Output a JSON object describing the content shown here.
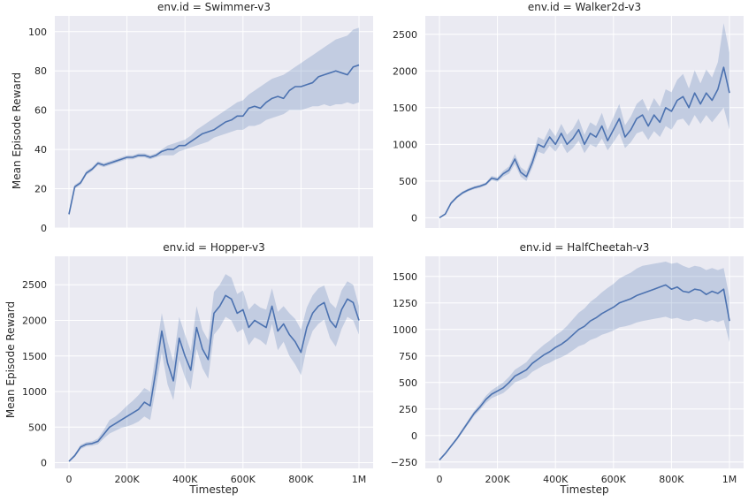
{
  "figure": {
    "xlabel": "Timestep",
    "ylabel": "Mean Episode Reward",
    "colors": {
      "background": "#eaeaf2",
      "grid": "#ffffff",
      "line": "#4c72b0",
      "band": "#4c72b0"
    }
  },
  "chart_data": [
    {
      "type": "line",
      "title": "env.id = Swimmer-v3",
      "xlim": [
        0,
        1000000
      ],
      "ylim": [
        0,
        108
      ],
      "xticks": [
        0,
        200000,
        400000,
        600000,
        800000,
        1000000
      ],
      "xtick_labels": [
        "0",
        "200K",
        "400K",
        "600K",
        "800K",
        "1M"
      ],
      "yticks": [
        0,
        20,
        40,
        60,
        80,
        100
      ],
      "ytick_labels": [
        "0",
        "20",
        "40",
        "60",
        "80",
        "100"
      ],
      "show_xticklabels": false,
      "show_ylabel": true,
      "show_xlabel": false,
      "x": [
        0,
        20000,
        40000,
        60000,
        80000,
        100000,
        120000,
        140000,
        160000,
        180000,
        200000,
        220000,
        240000,
        260000,
        280000,
        300000,
        320000,
        340000,
        360000,
        380000,
        400000,
        420000,
        440000,
        460000,
        480000,
        500000,
        520000,
        540000,
        560000,
        580000,
        600000,
        620000,
        640000,
        660000,
        680000,
        700000,
        720000,
        740000,
        760000,
        780000,
        800000,
        820000,
        840000,
        860000,
        880000,
        900000,
        920000,
        940000,
        960000,
        980000,
        1000000
      ],
      "y": [
        7,
        21,
        23,
        28,
        30,
        33,
        32,
        33,
        34,
        35,
        36,
        36,
        37,
        37,
        36,
        37,
        39,
        40,
        40,
        42,
        42,
        44,
        46,
        48,
        49,
        50,
        52,
        54,
        55,
        57,
        57,
        61,
        62,
        61,
        64,
        66,
        67,
        66,
        70,
        72,
        72,
        73,
        74,
        77,
        78,
        79,
        80,
        79,
        78,
        82,
        83
      ],
      "lower": [
        6,
        20,
        22,
        27,
        29,
        32,
        31,
        32,
        33,
        34,
        35,
        35,
        36,
        36,
        35,
        36,
        37,
        37,
        37,
        39,
        40,
        41,
        42,
        43,
        44,
        46,
        47,
        48,
        49,
        50,
        50,
        52,
        52,
        53,
        55,
        56,
        57,
        58,
        60,
        60,
        60,
        61,
        62,
        62,
        63,
        62,
        63,
        63,
        64,
        63,
        64
      ],
      "upper": [
        8,
        22,
        24,
        29,
        31,
        34,
        33,
        34,
        35,
        36,
        37,
        37,
        38,
        38,
        37,
        38,
        40,
        42,
        43,
        44,
        45,
        47,
        50,
        52,
        54,
        56,
        58,
        60,
        62,
        64,
        65,
        68,
        70,
        72,
        74,
        76,
        77,
        78,
        80,
        82,
        84,
        86,
        88,
        90,
        92,
        94,
        96,
        97,
        98,
        101,
        102
      ]
    },
    {
      "type": "line",
      "title": "env.id = Walker2d-v3",
      "xlim": [
        0,
        1000000
      ],
      "ylim": [
        -140,
        2750
      ],
      "xticks": [
        0,
        200000,
        400000,
        600000,
        800000,
        1000000
      ],
      "xtick_labels": [
        "0",
        "200K",
        "400K",
        "600K",
        "800K",
        "1M"
      ],
      "yticks": [
        0,
        500,
        1000,
        1500,
        2000,
        2500
      ],
      "ytick_labels": [
        "0",
        "500",
        "1000",
        "1500",
        "2000",
        "2500"
      ],
      "show_xticklabels": false,
      "show_ylabel": false,
      "show_xlabel": false,
      "x": [
        0,
        20000,
        40000,
        60000,
        80000,
        100000,
        120000,
        140000,
        160000,
        180000,
        200000,
        220000,
        240000,
        260000,
        280000,
        300000,
        320000,
        340000,
        360000,
        380000,
        400000,
        420000,
        440000,
        460000,
        480000,
        500000,
        520000,
        540000,
        560000,
        580000,
        600000,
        620000,
        640000,
        660000,
        680000,
        700000,
        720000,
        740000,
        760000,
        780000,
        800000,
        820000,
        840000,
        860000,
        880000,
        900000,
        920000,
        940000,
        960000,
        980000,
        1000000
      ],
      "y": [
        0,
        50,
        200,
        280,
        340,
        380,
        410,
        430,
        460,
        540,
        520,
        600,
        650,
        800,
        620,
        560,
        750,
        1000,
        960,
        1100,
        1000,
        1150,
        1000,
        1080,
        1200,
        1000,
        1150,
        1100,
        1250,
        1050,
        1200,
        1350,
        1100,
        1200,
        1350,
        1400,
        1250,
        1400,
        1300,
        1500,
        1450,
        1600,
        1650,
        1500,
        1700,
        1550,
        1700,
        1600,
        1750,
        2050,
        1700
      ],
      "lower": [
        0,
        40,
        180,
        260,
        320,
        360,
        390,
        410,
        440,
        510,
        490,
        560,
        600,
        730,
        560,
        500,
        680,
        900,
        870,
        980,
        900,
        1020,
        880,
        950,
        1050,
        880,
        1000,
        960,
        1080,
        920,
        1030,
        1150,
        950,
        1030,
        1150,
        1180,
        1060,
        1180,
        1100,
        1250,
        1200,
        1330,
        1350,
        1250,
        1400,
        1280,
        1400,
        1300,
        1400,
        1500,
        1200
      ],
      "upper": [
        5,
        60,
        220,
        300,
        360,
        400,
        430,
        450,
        480,
        570,
        550,
        640,
        700,
        870,
        690,
        630,
        830,
        1100,
        1060,
        1220,
        1110,
        1280,
        1130,
        1210,
        1350,
        1130,
        1300,
        1250,
        1430,
        1190,
        1370,
        1550,
        1260,
        1380,
        1550,
        1620,
        1450,
        1630,
        1510,
        1750,
        1710,
        1880,
        1960,
        1760,
        2010,
        1830,
        2020,
        1910,
        2120,
        2650,
        2250
      ]
    },
    {
      "type": "line",
      "title": "env.id = Hopper-v3",
      "xlim": [
        0,
        1000000
      ],
      "ylim": [
        -80,
        2900
      ],
      "xticks": [
        0,
        200000,
        400000,
        600000,
        800000,
        1000000
      ],
      "xtick_labels": [
        "0",
        "200K",
        "400K",
        "600K",
        "800K",
        "1M"
      ],
      "yticks": [
        0,
        500,
        1000,
        1500,
        2000,
        2500
      ],
      "ytick_labels": [
        "0",
        "500",
        "1000",
        "1500",
        "2000",
        "2500"
      ],
      "show_xticklabels": true,
      "show_ylabel": true,
      "show_xlabel": true,
      "x": [
        0,
        20000,
        40000,
        60000,
        80000,
        100000,
        120000,
        140000,
        160000,
        180000,
        200000,
        220000,
        240000,
        260000,
        280000,
        300000,
        320000,
        340000,
        360000,
        380000,
        400000,
        420000,
        440000,
        460000,
        480000,
        500000,
        520000,
        540000,
        560000,
        580000,
        600000,
        620000,
        640000,
        660000,
        680000,
        700000,
        720000,
        740000,
        760000,
        780000,
        800000,
        820000,
        840000,
        860000,
        880000,
        900000,
        920000,
        940000,
        960000,
        980000,
        1000000
      ],
      "y": [
        20,
        100,
        220,
        260,
        270,
        300,
        400,
        500,
        550,
        600,
        650,
        700,
        750,
        850,
        800,
        1300,
        1850,
        1400,
        1150,
        1750,
        1500,
        1300,
        1900,
        1600,
        1450,
        2100,
        2200,
        2350,
        2300,
        2100,
        2150,
        1900,
        2000,
        1950,
        1900,
        2200,
        1850,
        1950,
        1800,
        1700,
        1550,
        1900,
        2100,
        2200,
        2250,
        2000,
        1900,
        2150,
        2300,
        2250,
        2000
      ],
      "lower": [
        10,
        80,
        190,
        230,
        240,
        260,
        340,
        410,
        450,
        490,
        510,
        540,
        580,
        650,
        600,
        1050,
        1550,
        1100,
        880,
        1450,
        1200,
        1030,
        1600,
        1330,
        1180,
        1800,
        1900,
        2050,
        2000,
        1830,
        1880,
        1650,
        1760,
        1720,
        1650,
        1950,
        1580,
        1700,
        1500,
        1380,
        1230,
        1620,
        1850,
        1950,
        2010,
        1750,
        1630,
        1880,
        2050,
        2000,
        1800
      ],
      "upper": [
        30,
        120,
        250,
        290,
        300,
        340,
        460,
        600,
        650,
        720,
        800,
        870,
        950,
        1050,
        1000,
        1560,
        2100,
        1700,
        1420,
        2050,
        1800,
        1570,
        2200,
        1870,
        1720,
        2400,
        2500,
        2650,
        2600,
        2370,
        2420,
        2150,
        2240,
        2180,
        2150,
        2450,
        2120,
        2200,
        2100,
        2020,
        1870,
        2180,
        2350,
        2450,
        2490,
        2250,
        2170,
        2420,
        2550,
        2500,
        2200
      ]
    },
    {
      "type": "line",
      "title": "env.id = HalfCheetah-v3",
      "xlim": [
        0,
        1000000
      ],
      "ylim": [
        -310,
        1690
      ],
      "xticks": [
        0,
        200000,
        400000,
        600000,
        800000,
        1000000
      ],
      "xtick_labels": [
        "0",
        "200K",
        "400K",
        "600K",
        "800K",
        "1M"
      ],
      "yticks": [
        -250,
        0,
        250,
        500,
        750,
        1000,
        1250,
        1500
      ],
      "ytick_labels": [
        "−250",
        "0",
        "250",
        "500",
        "750",
        "1000",
        "1250",
        "1500"
      ],
      "show_xticklabels": true,
      "show_ylabel": false,
      "show_xlabel": true,
      "x": [
        0,
        20000,
        40000,
        60000,
        80000,
        100000,
        120000,
        140000,
        160000,
        180000,
        200000,
        220000,
        240000,
        260000,
        280000,
        300000,
        320000,
        340000,
        360000,
        380000,
        400000,
        420000,
        440000,
        460000,
        480000,
        500000,
        520000,
        540000,
        560000,
        580000,
        600000,
        620000,
        640000,
        660000,
        680000,
        700000,
        720000,
        740000,
        760000,
        780000,
        800000,
        820000,
        840000,
        860000,
        880000,
        900000,
        920000,
        940000,
        960000,
        980000,
        1000000
      ],
      "y": [
        -230,
        -170,
        -100,
        -30,
        50,
        130,
        210,
        270,
        340,
        390,
        420,
        450,
        500,
        560,
        590,
        620,
        680,
        720,
        760,
        790,
        830,
        860,
        900,
        950,
        1000,
        1030,
        1080,
        1110,
        1150,
        1180,
        1210,
        1250,
        1270,
        1290,
        1320,
        1340,
        1360,
        1380,
        1400,
        1420,
        1380,
        1400,
        1360,
        1350,
        1380,
        1370,
        1330,
        1360,
        1340,
        1380,
        1080
      ],
      "lower": [
        -235,
        -180,
        -112,
        -45,
        32,
        110,
        186,
        242,
        306,
        352,
        376,
        400,
        446,
        500,
        524,
        548,
        600,
        632,
        664,
        686,
        716,
        738,
        766,
        804,
        842,
        862,
        900,
        920,
        950,
        968,
        990,
        1020,
        1030,
        1044,
        1066,
        1080,
        1090,
        1100,
        1110,
        1120,
        1100,
        1110,
        1090,
        1080,
        1100,
        1090,
        1070,
        1090,
        1070,
        1090,
        880
      ],
      "upper": [
        -225,
        -160,
        -88,
        -15,
        68,
        150,
        234,
        298,
        374,
        428,
        464,
        500,
        554,
        620,
        656,
        692,
        760,
        808,
        856,
        894,
        944,
        982,
        1034,
        1096,
        1158,
        1198,
        1260,
        1300,
        1350,
        1392,
        1430,
        1480,
        1510,
        1536,
        1574,
        1600,
        1610,
        1620,
        1630,
        1640,
        1620,
        1630,
        1600,
        1580,
        1600,
        1590,
        1560,
        1580,
        1560,
        1580,
        1300
      ]
    }
  ]
}
